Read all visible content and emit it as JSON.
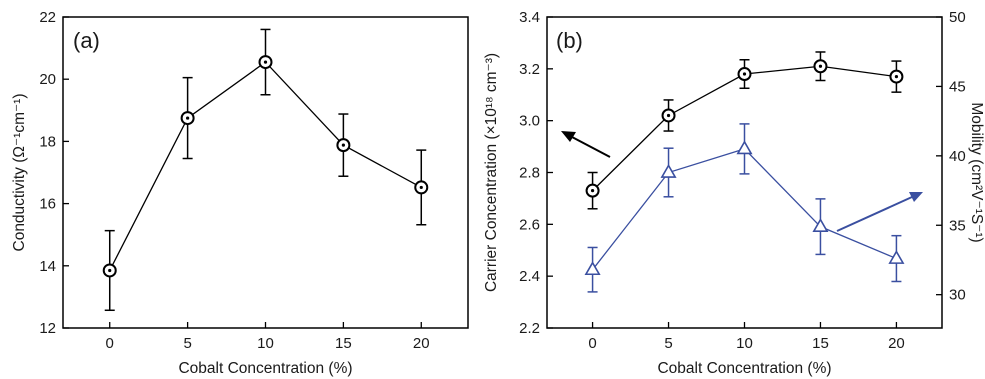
{
  "chart_data": [
    {
      "panel": "(a)",
      "type": "line",
      "x": [
        0,
        5,
        10,
        15,
        20
      ],
      "xlabel": "Cobalt Concentration (%)",
      "xticks": [
        "0",
        "5",
        "10",
        "15",
        "20"
      ],
      "xlim": [
        -3,
        23
      ],
      "ylabel": "Conductivity (Ω⁻¹cm⁻¹)",
      "yticks": [
        "12",
        "14",
        "16",
        "18",
        "20",
        "22"
      ],
      "ylim": [
        12,
        22
      ],
      "grid": false,
      "series": [
        {
          "values": [
            13.85,
            18.75,
            20.55,
            17.88,
            16.52
          ],
          "errors": [
            1.28,
            1.3,
            1.05,
            1.0,
            1.2
          ],
          "marker": "circle-dot",
          "color": "#000000"
        }
      ]
    },
    {
      "panel": "(b)",
      "type": "line",
      "x": [
        0,
        5,
        10,
        15,
        20
      ],
      "xlabel": "Cobalt Concentration (%)",
      "xticks": [
        "0",
        "5",
        "10",
        "15",
        "20"
      ],
      "xlim": [
        -3,
        23
      ],
      "ylabel_left": "Carrier Concentration (×10¹⁸ cm⁻³)",
      "ylabel_right": "Mobility (cm²V⁻¹S⁻¹)",
      "yticks_left": [
        "2.2",
        "2.4",
        "2.6",
        "2.8",
        "3.0",
        "3.2",
        "3.4"
      ],
      "ylim_left": [
        2.2,
        3.4
      ],
      "yticks_right": [
        "30",
        "35",
        "40",
        "45",
        "50"
      ],
      "ylim_right": [
        27.6,
        50
      ],
      "grid": false,
      "series": [
        {
          "axis": "left",
          "values": [
            2.73,
            3.02,
            3.18,
            3.21,
            3.17
          ],
          "errors": [
            0.07,
            0.06,
            0.055,
            0.055,
            0.06
          ],
          "marker": "circle-dot",
          "color": "#000000"
        },
        {
          "axis": "right",
          "values": [
            31.8,
            38.8,
            40.5,
            34.9,
            32.6
          ],
          "errors": [
            1.6,
            1.75,
            1.8,
            2.0,
            1.65
          ],
          "marker": "triangle",
          "color": "#3a4fa0"
        }
      ]
    }
  ]
}
